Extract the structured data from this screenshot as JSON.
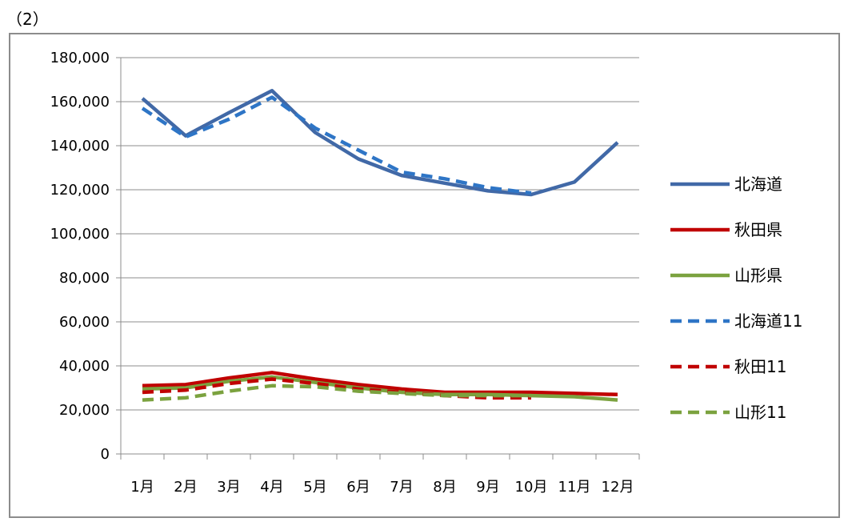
{
  "figure_label": "（2）",
  "chart_data": {
    "type": "line",
    "title": "",
    "xlabel": "",
    "ylabel": "",
    "categories": [
      "1月",
      "2月",
      "3月",
      "4月",
      "5月",
      "6月",
      "7月",
      "8月",
      "9月",
      "10月",
      "11月",
      "12月"
    ],
    "ylim": [
      0,
      180000
    ],
    "yticks": [
      0,
      20000,
      40000,
      60000,
      80000,
      100000,
      120000,
      140000,
      160000,
      180000
    ],
    "ytick_labels": [
      "0",
      "20,000",
      "40,000",
      "60,000",
      "80,000",
      "100,000",
      "120,000",
      "140,000",
      "160,000",
      "180,000"
    ],
    "grid": true,
    "legend_position": "right",
    "series": [
      {
        "name": "北海道",
        "color": "#4169A7",
        "dash": "solid",
        "values": [
          161500,
          144500,
          155000,
          165000,
          146000,
          134000,
          126500,
          123000,
          119500,
          117800,
          123500,
          141500
        ]
      },
      {
        "name": "秋田県",
        "color": "#C00000",
        "dash": "solid",
        "values": [
          31000,
          31500,
          34500,
          37000,
          34000,
          31500,
          29500,
          28000,
          28000,
          28000,
          27500,
          27000
        ]
      },
      {
        "name": "山形県",
        "color": "#7BA23F",
        "dash": "solid",
        "values": [
          29500,
          30000,
          33000,
          35000,
          32500,
          30000,
          28000,
          27000,
          27000,
          26500,
          26000,
          24500
        ]
      },
      {
        "name": "北海道11",
        "color": "#2E75C6",
        "dash": "dashed",
        "values": [
          157000,
          144000,
          152000,
          162000,
          148000,
          138000,
          128000,
          125000,
          121000,
          118500,
          null,
          null
        ]
      },
      {
        "name": "秋田11",
        "color": "#C00000",
        "dash": "dashed",
        "values": [
          28000,
          29000,
          32000,
          34000,
          32000,
          29500,
          28000,
          26500,
          25500,
          25500,
          null,
          null
        ]
      },
      {
        "name": "山形11",
        "color": "#7BA23F",
        "dash": "dashed",
        "values": [
          24500,
          25500,
          28500,
          31000,
          30500,
          28500,
          27500,
          26500,
          26500,
          26500,
          null,
          null
        ]
      }
    ]
  }
}
